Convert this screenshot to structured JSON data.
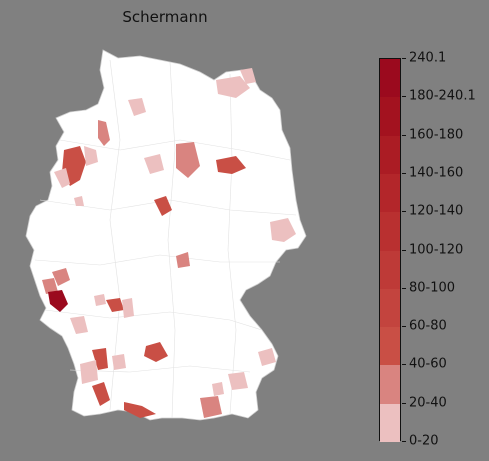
{
  "title": "Schermann",
  "colorbar": {
    "labels": [
      "240.1",
      "180-240.1",
      "160-180",
      "140-160",
      "120-140",
      "100-120",
      "80-100",
      "60-80",
      "40-60",
      "20-40",
      "0-20"
    ],
    "colors": [
      "#9b0a1e",
      "#a3121f",
      "#ab1c24",
      "#b3262a",
      "#b93030",
      "#be3a37",
      "#c3443e",
      "#c94f45",
      "#d98480",
      "#ecc0c0",
      "#ffffff"
    ]
  },
  "map": {
    "base_color": "#ffffff",
    "border_color": "#d6d6d6",
    "highlight_regions": [
      {
        "name": "",
        "level": "40-60"
      },
      {
        "name": "",
        "level": "80-100"
      },
      {
        "name": "",
        "level": "100-120"
      },
      {
        "name": "",
        "level": "180-240.1"
      }
    ]
  }
}
